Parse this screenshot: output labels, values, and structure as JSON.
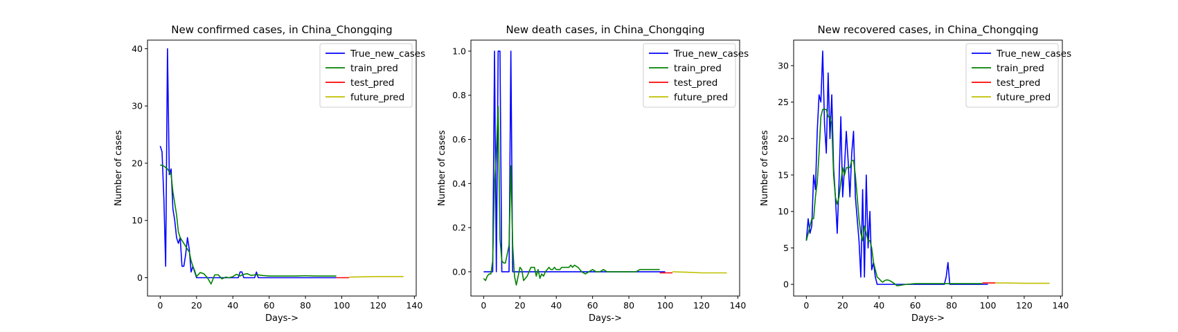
{
  "chart_data": [
    {
      "type": "line",
      "title": "New confirmed cases, in China_Chongqing",
      "xlabel": "Days->",
      "ylabel": "Number of cases",
      "xlim": [
        -7,
        141
      ],
      "ylim": [
        -3.2,
        41.5
      ],
      "xticks": [
        0,
        20,
        40,
        60,
        80,
        100,
        120,
        140
      ],
      "yticks": [
        0,
        10,
        20,
        30,
        40
      ],
      "ytick_labels": [
        "0",
        "10",
        "20",
        "30",
        "40"
      ],
      "legend": "upper-right",
      "series": [
        {
          "name": "True_new_cases",
          "color": "#0000ff",
          "x": [
            0,
            1,
            2,
            3,
            4,
            5,
            6,
            7,
            8,
            9,
            10,
            11,
            12,
            13,
            14,
            15,
            16,
            17,
            18,
            19,
            20,
            22,
            24,
            26,
            28,
            30,
            32,
            34,
            36,
            38,
            40,
            42,
            43,
            44,
            45,
            46,
            48,
            50,
            52,
            53,
            54,
            56,
            58,
            60,
            70,
            80,
            90,
            97
          ],
          "y": [
            23,
            22,
            14,
            2,
            40,
            18,
            19,
            12,
            10,
            7,
            6,
            7,
            2,
            2,
            4,
            7,
            5,
            1,
            2,
            1,
            0,
            0,
            0,
            0,
            0,
            0,
            0,
            0,
            0,
            0,
            0,
            0,
            0,
            1,
            1,
            0,
            0,
            0,
            0,
            1,
            0,
            0,
            0,
            0,
            0,
            0,
            0,
            0
          ]
        },
        {
          "name": "train_pred",
          "color": "#008000",
          "x": [
            0,
            2,
            4,
            6,
            7,
            8,
            9,
            10,
            11,
            12,
            14,
            16,
            17,
            18,
            19,
            20,
            22,
            24,
            26,
            28,
            30,
            32,
            34,
            36,
            38,
            40,
            42,
            44,
            46,
            48,
            50,
            52,
            54,
            56,
            60,
            65,
            70,
            75,
            80,
            85,
            90,
            94,
            97
          ],
          "y": [
            19.7,
            19.5,
            19.0,
            18.0,
            15,
            13,
            11,
            8,
            7,
            6.5,
            5.5,
            4.5,
            3,
            2,
            1.2,
            0.2,
            0.9,
            0.7,
            0,
            -1.1,
            0.5,
            0.5,
            -0.2,
            0.1,
            0,
            0.2,
            0.6,
            0.3,
            0.6,
            0.7,
            0.4,
            0.5,
            0.5,
            0.4,
            0.3,
            0.3,
            0.3,
            0.3,
            0.35,
            0.3,
            0.3,
            0.3,
            0.3
          ]
        },
        {
          "name": "test_pred",
          "color": "#ff0000",
          "x": [
            97,
            104
          ],
          "y": [
            0.0,
            0.0
          ]
        },
        {
          "name": "future_pred",
          "color": "#bfbf00",
          "x": [
            104,
            110,
            120,
            128,
            134
          ],
          "y": [
            0.1,
            0.15,
            0.2,
            0.2,
            0.2
          ]
        }
      ]
    },
    {
      "type": "line",
      "title": "New death cases, in China_Chongqing",
      "xlabel": "Days->",
      "ylabel": "Number of cases",
      "xlim": [
        -7,
        141
      ],
      "ylim": [
        -0.11,
        1.05
      ],
      "xticks": [
        0,
        20,
        40,
        60,
        80,
        100,
        120,
        140
      ],
      "yticks": [
        0,
        0.2,
        0.4,
        0.6,
        0.8,
        1.0
      ],
      "ytick_labels": [
        "0.0",
        "0.2",
        "0.4",
        "0.6",
        "0.8",
        "1.0"
      ],
      "legend": "upper-right",
      "series": [
        {
          "name": "True_new_cases",
          "color": "#0000ff",
          "x": [
            0,
            5,
            6,
            7,
            8,
            9,
            10,
            11,
            12,
            13,
            14,
            15,
            16,
            17,
            20,
            40,
            60,
            80,
            100
          ],
          "y": [
            0,
            0,
            1,
            0,
            1,
            1,
            0,
            0,
            0,
            0,
            0,
            1,
            0,
            0,
            0,
            0,
            0,
            0,
            0
          ]
        },
        {
          "name": "train_pred",
          "color": "#008000",
          "x": [
            0,
            1,
            2,
            3,
            4,
            5,
            6,
            7,
            8,
            9,
            10,
            11,
            12,
            13,
            14,
            15,
            16,
            17,
            18,
            19,
            20,
            21,
            22,
            23,
            24,
            25,
            26,
            27,
            28,
            29,
            30,
            31,
            32,
            33,
            34,
            35,
            36,
            37,
            38,
            39,
            40,
            41,
            42,
            43,
            44,
            45,
            46,
            47,
            48,
            49,
            50,
            52,
            54,
            56,
            58,
            60,
            62,
            64,
            66,
            68,
            70,
            72,
            74,
            76,
            78,
            80,
            82,
            84,
            86,
            88,
            90,
            92,
            94,
            96,
            97
          ],
          "y": [
            -0.03,
            -0.04,
            -0.02,
            -0.01,
            -0.01,
            0.05,
            0.4,
            0.55,
            0.75,
            0.15,
            0.05,
            0.04,
            0.04,
            0.08,
            0.12,
            0.48,
            0.12,
            -0.02,
            -0.06,
            -0.02,
            0.02,
            0.01,
            -0.04,
            -0.03,
            -0.02,
            0.0,
            0.02,
            0.02,
            0.02,
            -0.02,
            0.01,
            -0.03,
            -0.01,
            -0.02,
            0.0,
            0.01,
            0.02,
            0.01,
            0.01,
            0.02,
            0.01,
            0.01,
            0.01,
            0.02,
            0.02,
            0.02,
            0.02,
            0.02,
            0.03,
            0.02,
            0.03,
            0.02,
            0.0,
            -0.01,
            0.0,
            0.01,
            0.0,
            0.0,
            0.01,
            0.0,
            0.0,
            0.0,
            0.0,
            0.0,
            0.0,
            0.0,
            0.0,
            0.0,
            0.01,
            0.01,
            0.01,
            0.01,
            0.01,
            0.01,
            0.01
          ]
        },
        {
          "name": "test_pred",
          "color": "#ff0000",
          "x": [
            97,
            104
          ],
          "y": [
            -0.005,
            -0.005
          ]
        },
        {
          "name": "future_pred",
          "color": "#bfbf00",
          "x": [
            104,
            112,
            120,
            128,
            134
          ],
          "y": [
            0.0,
            -0.002,
            -0.005,
            -0.005,
            -0.005
          ]
        }
      ]
    },
    {
      "type": "line",
      "title": "New recovered cases, in China_Chongqing",
      "xlabel": "Days->",
      "ylabel": "Number of cases",
      "xlim": [
        -7,
        141
      ],
      "ylim": [
        -1.6,
        33.5
      ],
      "xticks": [
        0,
        20,
        40,
        60,
        80,
        100,
        120,
        140
      ],
      "yticks": [
        0,
        5,
        10,
        15,
        20,
        25,
        30
      ],
      "ytick_labels": [
        "0",
        "5",
        "10",
        "15",
        "20",
        "25",
        "30"
      ],
      "legend": "upper-right",
      "series": [
        {
          "name": "True_new_cases",
          "color": "#0000ff",
          "x": [
            0,
            1,
            2,
            3,
            4,
            5,
            6,
            7,
            8,
            9,
            10,
            11,
            12,
            13,
            14,
            15,
            16,
            17,
            18,
            19,
            20,
            21,
            22,
            23,
            24,
            25,
            26,
            27,
            28,
            29,
            30,
            31,
            32,
            33,
            34,
            35,
            36,
            37,
            38,
            39,
            40,
            50,
            60,
            70,
            76,
            77,
            78,
            79,
            80,
            90,
            100
          ],
          "y": [
            6,
            9,
            7,
            8,
            15,
            13,
            21,
            26,
            25,
            32,
            22,
            18,
            29,
            20,
            26,
            16,
            12,
            7,
            14,
            23,
            12,
            16,
            21,
            17,
            12,
            18,
            21,
            12,
            9,
            6,
            1,
            13,
            1,
            15,
            5,
            10,
            2,
            3,
            1,
            0,
            0,
            0,
            0,
            0,
            0,
            1,
            3,
            0,
            0,
            0,
            0
          ]
        },
        {
          "name": "train_pred",
          "color": "#008000",
          "x": [
            0,
            1,
            2,
            3,
            4,
            5,
            6,
            7,
            8,
            9,
            10,
            11,
            12,
            13,
            14,
            15,
            16,
            17,
            18,
            19,
            20,
            21,
            22,
            23,
            24,
            25,
            26,
            27,
            28,
            29,
            30,
            31,
            32,
            33,
            34,
            35,
            36,
            37,
            38,
            39,
            40,
            41,
            42,
            43,
            44,
            45,
            46,
            48,
            50,
            55,
            60,
            70,
            80,
            90,
            97
          ],
          "y": [
            6,
            7,
            8,
            9,
            9,
            12,
            14,
            18,
            23,
            24,
            24,
            24,
            23,
            23,
            22,
            15,
            12,
            11,
            12,
            14,
            16,
            15,
            16,
            16,
            16,
            17,
            17,
            15,
            12,
            9,
            7,
            6,
            8,
            7,
            6,
            6,
            5,
            3,
            2,
            1,
            0.8,
            0.5,
            0.3,
            0.5,
            0.6,
            0.6,
            0.5,
            0.2,
            -0.2,
            0,
            0.1,
            0.1,
            0.1,
            0.1,
            0.1
          ]
        },
        {
          "name": "test_pred",
          "color": "#ff0000",
          "x": [
            97,
            104
          ],
          "y": [
            0.2,
            0.2
          ]
        },
        {
          "name": "future_pred",
          "color": "#bfbf00",
          "x": [
            104,
            110,
            120,
            128,
            134
          ],
          "y": [
            0.2,
            0.2,
            0.15,
            0.15,
            0.15
          ]
        }
      ]
    }
  ]
}
